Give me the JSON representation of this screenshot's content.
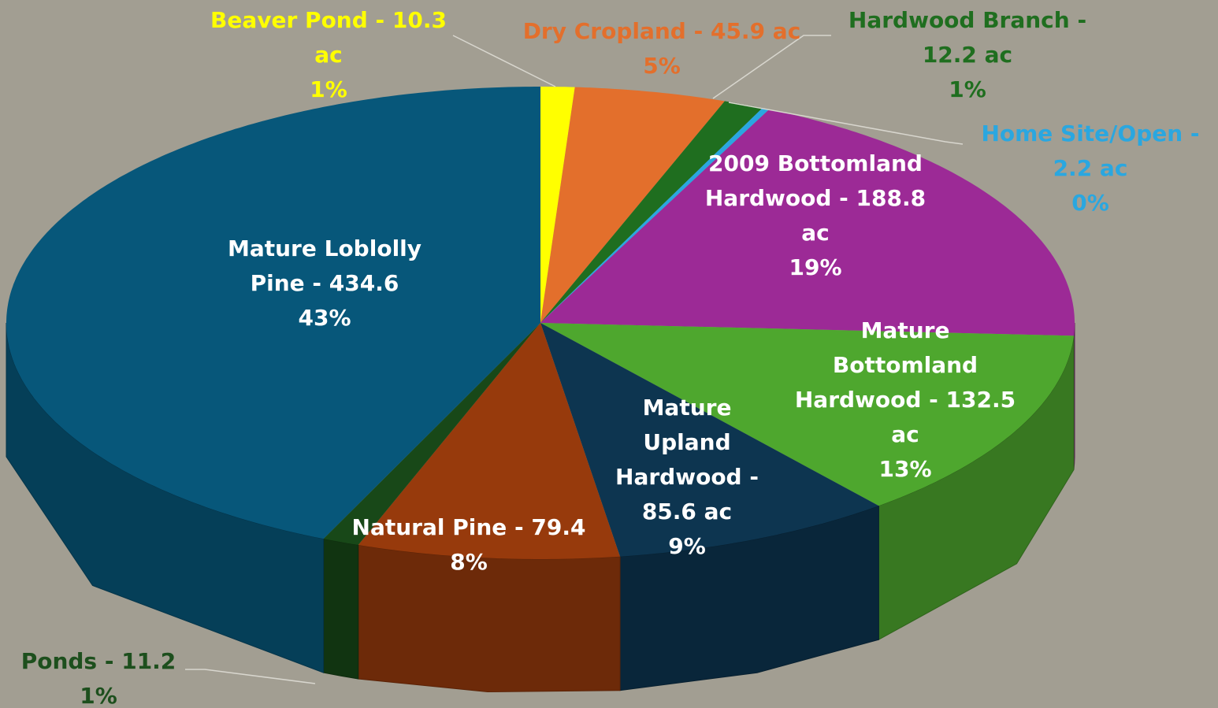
{
  "chart_data": {
    "type": "pie",
    "categories": [
      "Beaver Pond - 10.3 ac",
      "Dry Cropland - 45.9 ac",
      "Hardwood Branch - 12.2 ac",
      "Home Site/Open - 2.2 ac",
      "2009 Bottomland Hardwood - 188.8 ac",
      "Mature Bottomland Hardwood - 132.5 ac",
      "Mature Upland Hardwood - 85.6 ac",
      "Natural Pine - 79.4",
      "Ponds - 11.2",
      "Mature Loblolly Pine - 434.6"
    ],
    "values": [
      10.3,
      45.9,
      12.2,
      2.2,
      188.8,
      132.5,
      85.6,
      79.4,
      11.2,
      434.6
    ],
    "percent_labels": [
      "1%",
      "5%",
      "1%",
      "0%",
      "19%",
      "13%",
      "9%",
      "8%",
      "1%",
      "43%"
    ],
    "colors": [
      "#ffff00",
      "#e36f2c",
      "#1f6e1f",
      "#2aa7e0",
      "#9c2a96",
      "#4ea72e",
      "#0d3550",
      "#973a0c",
      "#184818",
      "#07577a"
    ]
  }
}
